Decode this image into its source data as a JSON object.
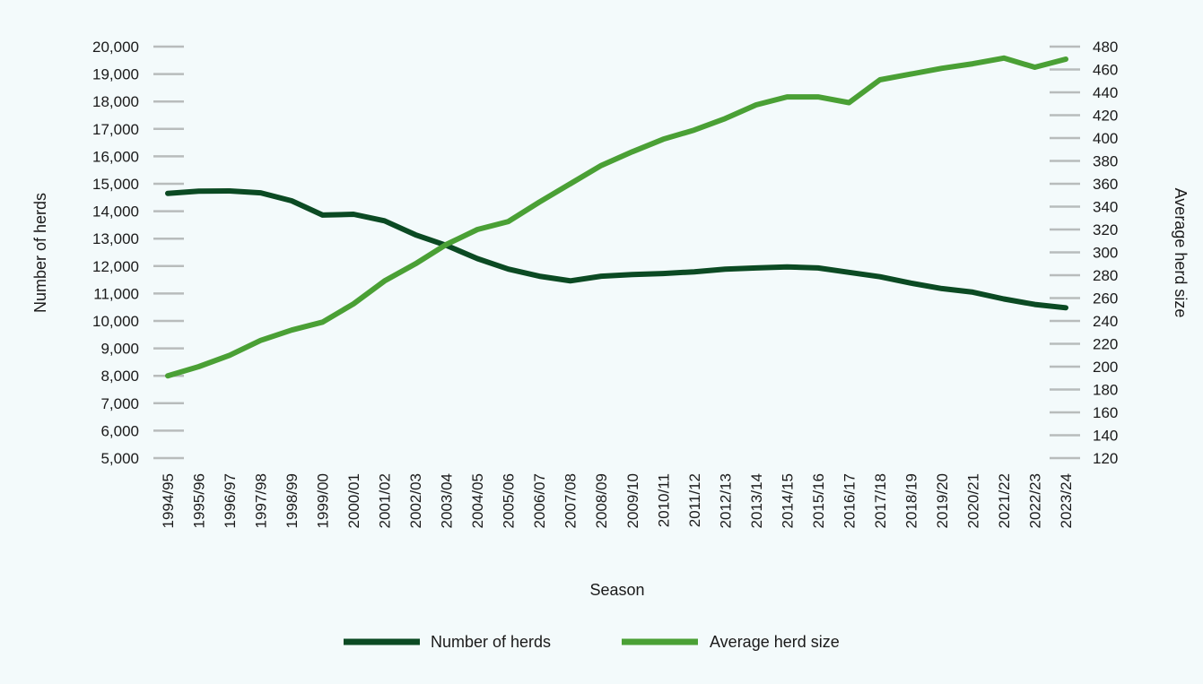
{
  "chart_data": {
    "type": "line",
    "xlabel": "Season",
    "ylabel": "Number of herds",
    "y2label": "Average herd size",
    "ylim": [
      5000,
      20000
    ],
    "y2lim": [
      120,
      480
    ],
    "yticks": [
      "5,000",
      "6,000",
      "7,000",
      "8,000",
      "9,000",
      "10,000",
      "11,000",
      "12,000",
      "13,000",
      "14,000",
      "15,000",
      "16,000",
      "17,000",
      "18,000",
      "19,000",
      "20,000"
    ],
    "y2ticks": [
      "120",
      "140",
      "160",
      "180",
      "200",
      "220",
      "240",
      "260",
      "280",
      "300",
      "320",
      "340",
      "360",
      "380",
      "400",
      "420",
      "440",
      "460",
      "480"
    ],
    "categories": [
      "1994/95",
      "1995/96",
      "1996/97",
      "1997/98",
      "1998/99",
      "1999/00",
      "2000/01",
      "2001/02",
      "2002/03",
      "2003/04",
      "2004/05",
      "2005/06",
      "2006/07",
      "2007/08",
      "2008/09",
      "2009/10",
      "2010/11",
      "2011/12",
      "2012/13",
      "2013/14",
      "2014/15",
      "2015/16",
      "2016/17",
      "2017/18",
      "2018/19",
      "2019/20",
      "2020/21",
      "2021/22",
      "2022/23",
      "2023/24"
    ],
    "legend_position": "bottom",
    "series": [
      {
        "name": "Number of herds",
        "axis": "left",
        "color": "#0b4a23",
        "values": [
          14650,
          14730,
          14740,
          14670,
          14380,
          13860,
          13890,
          13650,
          13140,
          12750,
          12270,
          11890,
          11630,
          11460,
          11630,
          11690,
          11730,
          11790,
          11890,
          11930,
          11970,
          11930,
          11770,
          11610,
          11380,
          11180,
          11050,
          10800,
          10600,
          10480
        ]
      },
      {
        "name": "Average herd size",
        "axis": "right",
        "color": "#4aa035",
        "values": [
          192,
          200,
          210,
          223,
          232,
          239,
          255,
          275,
          290,
          307,
          320,
          327,
          344,
          360,
          376,
          388,
          399,
          407,
          417,
          429,
          436,
          436,
          431,
          451,
          456,
          461,
          465,
          470,
          462,
          469
        ]
      }
    ]
  }
}
